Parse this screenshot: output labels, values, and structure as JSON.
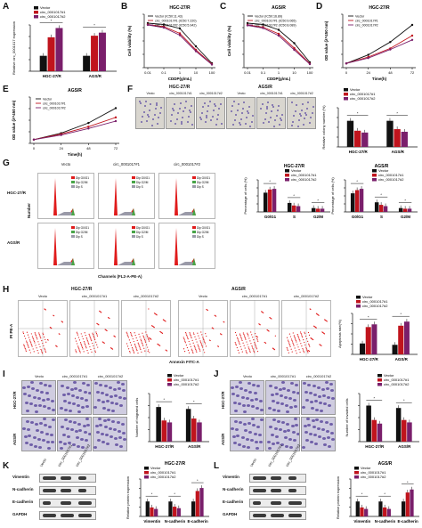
{
  "labels": {
    "A": "A",
    "B": "B",
    "C": "C",
    "D": "D",
    "E": "E",
    "F": "F",
    "G": "G",
    "H": "H",
    "I": "I",
    "J": "J",
    "K": "K",
    "L": "L"
  },
  "legend": {
    "vector": "Vector",
    "c1": "circ_0001017#1",
    "c2": "circ_0001017#2"
  },
  "colors": {
    "vector": "#111111",
    "c1": "#c0141d",
    "c2": "#7a1f6b",
    "flow_red": "#e01b1b",
    "flow_gray": "#9a9aa8",
    "flow_green": "#47a547",
    "blot": "#3a3a3a",
    "stain": "#6f5fa8"
  },
  "A": {
    "ylabel": "Relative circ_0001017 expression",
    "groups": [
      "HGC-27/R",
      "AGS/R"
    ]
  },
  "B": {
    "title": "HGC-27/R",
    "xlabel": "CDDP(g/mL)",
    "ylabel": "Cell viability (%)",
    "ic50": [
      "Vector (IC50:11.43)",
      "circ_0001017#1 (IC50:7.220)",
      "circ_0001017#2 (IC50:5.942)"
    ],
    "xticks": [
      "0.01",
      "0.1",
      "1",
      "10",
      "100"
    ]
  },
  "C": {
    "title": "AGS/R",
    "xlabel": "CDDP(g/mL)",
    "ylabel": "Cell viability (%)",
    "ic50": [
      "Vector (IC50:16.89)",
      "circ_0001017#1 (IC50:9.065)",
      "circ_0001017#2 (IC50:8.089)"
    ],
    "xticks": [
      "0.01",
      "0.1",
      "1",
      "10",
      "100"
    ]
  },
  "D": {
    "title": "HGC-27/R",
    "xlabel": "Time(h)",
    "ylabel": "OD value (λ=450 nm)",
    "xticks": [
      "0",
      "24",
      "48",
      "72"
    ]
  },
  "E": {
    "title": "AGS/R",
    "xlabel": "Time(h)",
    "ylabel": "OD value (λ=450 nm)",
    "xticks": [
      "0",
      "24",
      "48",
      "72"
    ]
  },
  "F": {
    "ylabel": "Relative colony number (%)",
    "groups": [
      "HGC-27/R",
      "AGS/R"
    ],
    "cols_hgc": [
      "Vecto",
      "circ_0001017#1",
      "circ_0001017#2"
    ],
    "header_hgc": "HGC-27/R",
    "header_ags": "AGS/R"
  },
  "G": {
    "cols": [
      "Vecto",
      "circ_0001017#1",
      "circ_0001017#2"
    ],
    "rows": [
      "HGC-27/R",
      "AGS/R"
    ],
    "xlabel": "Channels (FL2-A-PE-A)",
    "ylabel": "Number",
    "phases": [
      "Dip G0/G1",
      "Dip G2/M",
      "Dip S"
    ],
    "bar1_title": "HGC-27/R",
    "bar2_title": "AGS/R",
    "bar_ylabel": "Percentage of cells (%)",
    "bar_groups": [
      "G0/G1",
      "S",
      "G2/M"
    ]
  },
  "H": {
    "header_hgc": "HGC-27/R",
    "header_ags": "AGS/R",
    "cols": [
      "Vecto",
      "circ_0001017#1",
      "circ_0001017#2",
      "Vecto",
      "circ_0001017#1",
      "circ_0001017#2"
    ],
    "xlabel": "Annexin FITC-A",
    "ylabel": "PI PE-A",
    "bar_ylabel": "Apoptosis rate(%)",
    "groups": [
      "HGC-27/R",
      "AGS/R"
    ]
  },
  "I": {
    "cols": [
      "Vecto",
      "circ_0001017#1",
      "circ_0001017#2"
    ],
    "rows": [
      "HGC-27/R",
      "AGS/R"
    ],
    "bar_ylabel": "Number of migrated cells",
    "groups": [
      "HGC-27/R",
      "AGS/R"
    ]
  },
  "J": {
    "cols": [
      "Vecto",
      "circ_0001017#1",
      "circ_0001017#2"
    ],
    "rows": [
      "HGC-27/R",
      "AGS/R"
    ],
    "bar_ylabel": "Number of invaded cells",
    "groups": [
      "HGC-27/R",
      "AGS/R"
    ]
  },
  "K": {
    "lanes": [
      "Vecto",
      "circ_0001017#1",
      "circ_0001017#2"
    ],
    "proteins": [
      "Vimentin",
      "N-cadherin",
      "E-cadherin",
      "GAPDH"
    ],
    "bar_title": "HGC-27/R",
    "bar_ylabel": "Relative protein expression",
    "groups": [
      "Vimentin",
      "N-cadherin",
      "E-cadherin"
    ]
  },
  "L": {
    "lanes": [
      "Vecto",
      "circ_0001017#1",
      "circ_0001017#2"
    ],
    "proteins": [
      "Vimentin",
      "N-cadherin",
      "E-cadherin",
      "GAPDH"
    ],
    "bar_title": "AGS/R",
    "bar_ylabel": "Relative protein expression",
    "groups": [
      "Vimentin",
      "N-cadherin",
      "E-cadherin"
    ]
  },
  "chart_data": [
    {
      "type": "bar",
      "categories": [
        "HGC-27/R",
        "AGS/R"
      ],
      "series": [
        {
          "name": "Vector",
          "values": [
            1.0,
            1.0
          ]
        },
        {
          "name": "circ_0001017#1",
          "values": [
            2.2,
            2.3
          ]
        },
        {
          "name": "circ_0001017#2",
          "values": [
            2.8,
            2.5
          ]
        }
      ],
      "ylim": [
        0,
        3
      ]
    },
    {
      "type": "line",
      "x": [
        0.01,
        0.1,
        1,
        10,
        100
      ],
      "series": [
        {
          "name": "Vector",
          "values": [
            100,
            97,
            88,
            48,
            10
          ]
        },
        {
          "name": "circ_0001017#1",
          "values": [
            97,
            92,
            77,
            40,
            8
          ]
        },
        {
          "name": "circ_0001017#2",
          "values": [
            96,
            90,
            73,
            37,
            7
          ]
        }
      ],
      "ylim": [
        0,
        120
      ]
    },
    {
      "type": "line",
      "x": [
        0.01,
        0.1,
        1,
        10,
        100
      ],
      "series": [
        {
          "name": "Vector",
          "values": [
            100,
            97,
            85,
            55,
            12
          ]
        },
        {
          "name": "circ_0001017#1",
          "values": [
            96,
            91,
            76,
            44,
            9
          ]
        },
        {
          "name": "circ_0001017#2",
          "values": [
            95,
            89,
            72,
            40,
            8
          ]
        }
      ],
      "ylim": [
        0,
        120
      ]
    },
    {
      "type": "line",
      "x": [
        0,
        24,
        48,
        72
      ],
      "series": [
        {
          "name": "Vector",
          "values": [
            0.2,
            0.6,
            1.2,
            2.0
          ]
        },
        {
          "name": "circ_0001017#1",
          "values": [
            0.2,
            0.5,
            0.9,
            1.5
          ]
        },
        {
          "name": "circ_0001017#2",
          "values": [
            0.2,
            0.45,
            0.85,
            1.3
          ]
        }
      ],
      "ylim": [
        0,
        2.5
      ]
    },
    {
      "type": "line",
      "x": [
        0,
        24,
        48,
        72
      ],
      "series": [
        {
          "name": "Vector",
          "values": [
            0.2,
            0.55,
            1.1,
            1.9
          ]
        },
        {
          "name": "circ_0001017#1",
          "values": [
            0.2,
            0.5,
            0.9,
            1.4
          ]
        },
        {
          "name": "circ_0001017#2",
          "values": [
            0.2,
            0.45,
            0.8,
            1.2
          ]
        }
      ],
      "ylim": [
        0,
        2.5
      ]
    },
    {
      "type": "bar",
      "categories": [
        "HGC-27/R",
        "AGS/R"
      ],
      "series": [
        {
          "name": "Vector",
          "values": [
            100,
            100
          ]
        },
        {
          "name": "circ_0001017#1",
          "values": [
            62,
            68
          ]
        },
        {
          "name": "circ_0001017#2",
          "values": [
            55,
            58
          ]
        }
      ],
      "ylim": [
        0,
        150
      ]
    },
    {
      "type": "bar",
      "categories": [
        "G0/G1",
        "S",
        "G2/M"
      ],
      "series": [
        {
          "name": "Vector",
          "values": [
            60,
            28,
            12
          ]
        },
        {
          "name": "circ_0001017#1",
          "values": [
            70,
            20,
            10
          ]
        },
        {
          "name": "circ_0001017#2",
          "values": [
            72,
            18,
            10
          ]
        }
      ],
      "ylim": [
        0,
        100
      ]
    },
    {
      "type": "bar",
      "categories": [
        "G0/G1",
        "S",
        "G2/M"
      ],
      "series": [
        {
          "name": "Vector",
          "values": [
            58,
            30,
            12
          ]
        },
        {
          "name": "circ_0001017#1",
          "values": [
            68,
            22,
            10
          ]
        },
        {
          "name": "circ_0001017#2",
          "values": [
            72,
            18,
            10
          ]
        }
      ],
      "ylim": [
        0,
        100
      ]
    },
    {
      "type": "bar",
      "categories": [
        "HGC-27/R",
        "AGS/R"
      ],
      "series": [
        {
          "name": "Vector",
          "values": [
            8,
            7
          ]
        },
        {
          "name": "circ_0001017#1",
          "values": [
            20,
            21
          ]
        },
        {
          "name": "circ_0001017#2",
          "values": [
            22,
            24
          ]
        }
      ],
      "ylim": [
        0,
        30
      ]
    },
    {
      "type": "bar",
      "categories": [
        "HGC-27/R",
        "AGS/R"
      ],
      "series": [
        {
          "name": "Vector",
          "values": [
            180,
            170
          ]
        },
        {
          "name": "circ_0001017#1",
          "values": [
            110,
            120
          ]
        },
        {
          "name": "circ_0001017#2",
          "values": [
            100,
            100
          ]
        }
      ],
      "ylim": [
        0,
        250
      ]
    },
    {
      "type": "bar",
      "categories": [
        "HGC-27/R",
        "AGS/R"
      ],
      "series": [
        {
          "name": "Vector",
          "values": [
            150,
            140
          ]
        },
        {
          "name": "circ_0001017#1",
          "values": [
            90,
            90
          ]
        },
        {
          "name": "circ_0001017#2",
          "values": [
            75,
            80
          ]
        }
      ],
      "ylim": [
        0,
        200
      ]
    },
    {
      "type": "bar",
      "categories": [
        "Vimentin",
        "N-cadherin",
        "E-cadherin"
      ],
      "series": [
        {
          "name": "Vector",
          "values": [
            1.0,
            1.0,
            1.0
          ]
        },
        {
          "name": "circ_0001017#1",
          "values": [
            0.6,
            0.65,
            1.7
          ]
        },
        {
          "name": "circ_0001017#2",
          "values": [
            0.5,
            0.55,
            1.9
          ]
        }
      ],
      "ylim": [
        0,
        2.5
      ]
    },
    {
      "type": "bar",
      "categories": [
        "Vimentin",
        "N-cadherin",
        "E-cadherin"
      ],
      "series": [
        {
          "name": "Vector",
          "values": [
            1.0,
            1.0,
            1.0
          ]
        },
        {
          "name": "circ_0001017#1",
          "values": [
            0.6,
            0.6,
            1.6
          ]
        },
        {
          "name": "circ_0001017#2",
          "values": [
            0.5,
            0.5,
            1.8
          ]
        }
      ],
      "ylim": [
        0,
        2.5
      ]
    }
  ]
}
